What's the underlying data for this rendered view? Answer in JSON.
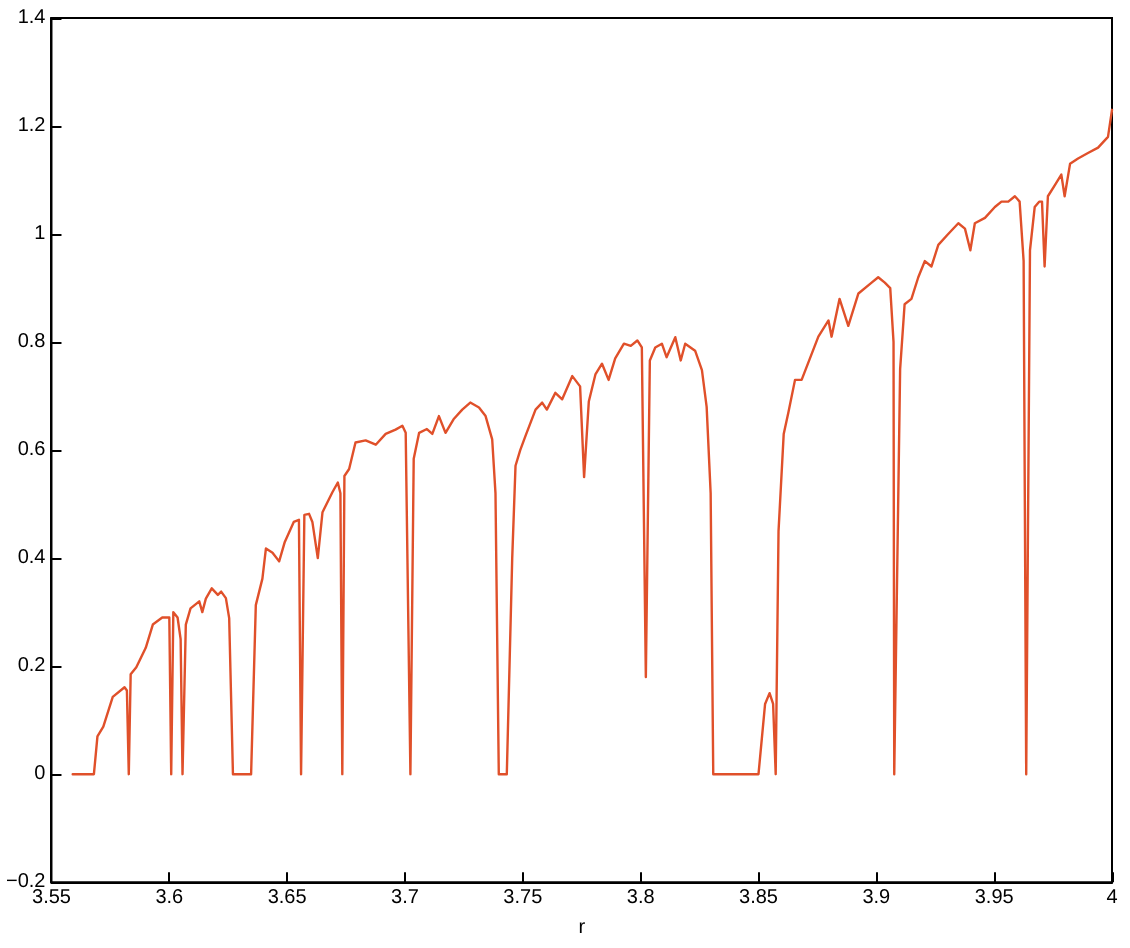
{
  "chart_data": {
    "type": "line",
    "xlabel": "r",
    "xlim": [
      3.55,
      4
    ],
    "ylim": [
      -0.2,
      1.4
    ],
    "xticks": [
      3.55,
      3.6,
      3.65,
      3.7,
      3.75,
      3.8,
      3.85,
      3.9,
      3.95,
      4
    ],
    "yticks": [
      {
        "value": -0.2,
        "label": "−0.2"
      },
      0,
      0.2,
      0.4,
      0.6,
      0.8,
      1,
      1.2,
      1.4
    ],
    "series": [
      {
        "color": "#e0502a",
        "x": [
          3.559,
          3.568,
          3.5695,
          3.572,
          3.576,
          3.581,
          3.582,
          3.5828,
          3.5836,
          3.586,
          3.59,
          3.593,
          3.597,
          3.6,
          3.6008,
          3.6017,
          3.6035,
          3.6048,
          3.6056,
          3.607,
          3.609,
          3.6127,
          3.614,
          3.6155,
          3.618,
          3.6206,
          3.622,
          3.624,
          3.6254,
          3.627,
          3.6347,
          3.6367,
          3.6395,
          3.641,
          3.6438,
          3.6466,
          3.649,
          3.6528,
          3.655,
          3.6559,
          3.6573,
          3.6593,
          3.6607,
          3.663,
          3.665,
          3.6692,
          3.6715,
          3.6726,
          3.6734,
          3.6743,
          3.6763,
          3.679,
          3.6833,
          3.6876,
          3.6918,
          3.696,
          3.6989,
          3.7003,
          3.7023,
          3.7037,
          3.706,
          3.7093,
          3.7116,
          3.7144,
          3.7172,
          3.7206,
          3.7243,
          3.7277,
          3.7314,
          3.7342,
          3.737,
          3.7384,
          3.7398,
          3.7432,
          3.7455,
          3.7469,
          3.7489,
          3.7511,
          3.7554,
          3.7582,
          3.7602,
          3.7638,
          3.7667,
          3.771,
          3.7743,
          3.776,
          3.778,
          3.7808,
          3.7836,
          3.7864,
          3.7892,
          3.7929,
          3.7958,
          3.7986,
          3.8005,
          3.8022,
          3.8039,
          3.8062,
          3.809,
          3.811,
          3.8147,
          3.817,
          3.8189,
          3.8231,
          3.826,
          3.828,
          3.8297,
          3.8308,
          3.85,
          3.8528,
          3.8547,
          3.8562,
          3.8573,
          3.8585,
          3.8607,
          3.8627,
          3.8655,
          3.8683,
          3.8754,
          3.8797,
          3.881,
          3.8844,
          3.8881,
          3.8924,
          3.898,
          3.9008,
          3.9036,
          3.9059,
          3.9073,
          3.9076,
          3.9101,
          3.912,
          3.9149,
          3.9178,
          3.9206,
          3.9234,
          3.9263,
          3.9305,
          3.9348,
          3.9376,
          3.9399,
          3.9418,
          3.9461,
          3.9503,
          3.9531,
          3.956,
          3.9588,
          3.9608,
          3.9625,
          3.9636,
          3.9652,
          3.9672,
          3.9691,
          3.9703,
          3.9714,
          3.9728,
          3.9757,
          3.9785,
          3.9799,
          3.9822,
          3.9856,
          3.9898,
          3.9941,
          3.9983,
          4.0
        ],
        "values": [
          0,
          0,
          0.07,
          0.088,
          0.143,
          0.161,
          0.155,
          0,
          0.185,
          0.198,
          0.234,
          0.277,
          0.29,
          0.29,
          0,
          0.3,
          0.29,
          0.25,
          0,
          0.277,
          0.307,
          0.32,
          0.3,
          0.325,
          0.344,
          0.332,
          0.338,
          0.326,
          0.289,
          0,
          0,
          0.313,
          0.362,
          0.418,
          0.41,
          0.394,
          0.43,
          0.467,
          0.471,
          0,
          0.48,
          0.482,
          0.467,
          0.4,
          0.485,
          0.522,
          0.54,
          0.52,
          0,
          0.552,
          0.565,
          0.614,
          0.618,
          0.61,
          0.63,
          0.638,
          0.645,
          0.632,
          0,
          0.584,
          0.632,
          0.639,
          0.63,
          0.663,
          0.632,
          0.657,
          0.675,
          0.688,
          0.679,
          0.663,
          0.62,
          0.52,
          0,
          0,
          0.4,
          0.571,
          0.6,
          0.626,
          0.675,
          0.688,
          0.675,
          0.706,
          0.694,
          0.737,
          0.718,
          0.55,
          0.69,
          0.74,
          0.76,
          0.73,
          0.77,
          0.797,
          0.793,
          0.803,
          0.79,
          0.18,
          0.766,
          0.79,
          0.797,
          0.772,
          0.809,
          0.766,
          0.797,
          0.784,
          0.748,
          0.68,
          0.52,
          0,
          0,
          0.13,
          0.15,
          0.13,
          0,
          0.45,
          0.63,
          0.67,
          0.73,
          0.73,
          0.81,
          0.84,
          0.81,
          0.88,
          0.83,
          0.89,
          0.91,
          0.92,
          0.91,
          0.9,
          0.8,
          0,
          0.75,
          0.87,
          0.88,
          0.92,
          0.95,
          0.94,
          0.98,
          1.0,
          1.02,
          1.01,
          0.97,
          1.02,
          1.03,
          1.05,
          1.06,
          1.06,
          1.07,
          1.06,
          0.95,
          0,
          0.97,
          1.05,
          1.06,
          1.06,
          0.94,
          1.07,
          1.09,
          1.11,
          1.07,
          1.13,
          1.14,
          1.15,
          1.16,
          1.18,
          1.23
        ]
      }
    ]
  }
}
